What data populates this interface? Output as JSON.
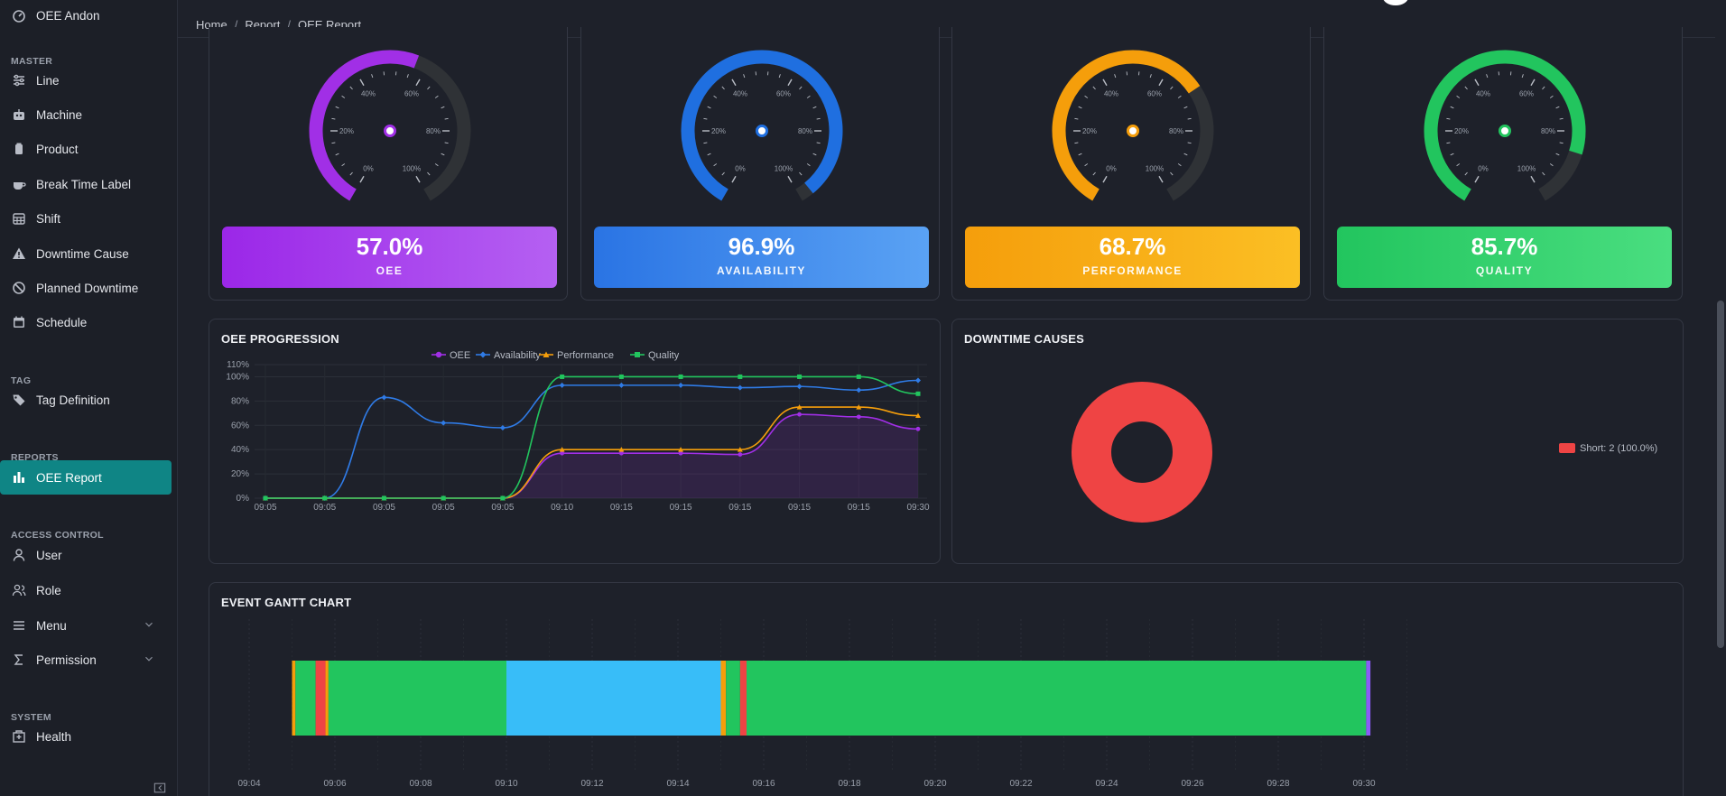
{
  "sidebar": {
    "top_item": {
      "label": "OEE Andon",
      "icon": "gauge-icon"
    },
    "sections": [
      {
        "label": "MASTER"
      },
      {
        "label": "TAG"
      },
      {
        "label": "REPORTS"
      },
      {
        "label": "ACCESS CONTROL"
      },
      {
        "label": "SYSTEM"
      }
    ],
    "items": [
      {
        "label": "Line",
        "icon": "sliders-icon"
      },
      {
        "label": "Machine",
        "icon": "robot-icon"
      },
      {
        "label": "Product",
        "icon": "box-icon"
      },
      {
        "label": "Break Time Label",
        "icon": "coffee-icon"
      },
      {
        "label": "Shift",
        "icon": "calendar-grid-icon"
      },
      {
        "label": "Downtime Cause",
        "icon": "warning-icon"
      },
      {
        "label": "Planned Downtime",
        "icon": "ban-icon"
      },
      {
        "label": "Schedule",
        "icon": "calendar-icon"
      },
      {
        "label": "Tag Definition",
        "icon": "tags-icon"
      },
      {
        "label": "OEE Report",
        "icon": "bar-chart-icon",
        "active": true
      },
      {
        "label": "User",
        "icon": "user-icon"
      },
      {
        "label": "Role",
        "icon": "users-icon"
      },
      {
        "label": "Menu",
        "icon": "menu-icon"
      },
      {
        "label": "Permission",
        "icon": "sigma-icon"
      },
      {
        "label": "Health",
        "icon": "hospital-icon"
      }
    ]
  },
  "breadcrumb": [
    "Home",
    "Report",
    "OEE Report"
  ],
  "gauges": [
    {
      "label": "OEE",
      "value_text": "57.0%",
      "value": 57.0,
      "color": "#a12fe6",
      "box_from": "#9b27e8",
      "box_to": "#b560f2"
    },
    {
      "label": "AVAILABILITY",
      "value_text": "96.9%",
      "value": 96.9,
      "color": "#1f6fe0",
      "box_from": "#2a74e4",
      "box_to": "#5aa2f4"
    },
    {
      "label": "PERFORMANCE",
      "value_text": "68.7%",
      "value": 68.7,
      "color": "#f59e0b",
      "box_from": "#f59e0b",
      "box_to": "#fbbf24"
    },
    {
      "label": "QUALITY",
      "value_text": "85.7%",
      "value": 85.7,
      "color": "#22c55e",
      "box_from": "#22c55e",
      "box_to": "#4ade80"
    }
  ],
  "gauge_ticks": [
    "0%",
    "20%",
    "40%",
    "60%",
    "80%",
    "100%"
  ],
  "oee_progression": {
    "title": "OEE PROGRESSION",
    "chart_data": {
      "type": "line",
      "categories": [
        "09:05",
        "09:05",
        "09:05",
        "09:05",
        "09:05",
        "09:10",
        "09:15",
        "09:15",
        "09:15",
        "09:15",
        "09:15",
        "09:30"
      ],
      "yticks": [
        "0%",
        "20%",
        "40%",
        "60%",
        "80%",
        "100%",
        "110%"
      ],
      "ylim": [
        0,
        110
      ],
      "series": [
        {
          "name": "OEE",
          "color": "#a12fe6",
          "marker": "circle",
          "values": [
            0,
            0,
            0,
            0,
            0,
            37,
            37,
            37,
            36,
            69,
            67,
            57
          ],
          "fill": true
        },
        {
          "name": "Availability",
          "color": "#2f7be6",
          "marker": "diamond",
          "values": [
            0,
            0,
            83,
            62,
            58,
            93,
            93,
            93,
            91,
            92,
            89,
            97
          ]
        },
        {
          "name": "Performance",
          "color": "#f59e0b",
          "marker": "triangle",
          "values": [
            0,
            0,
            0,
            0,
            0,
            40,
            40,
            40,
            40,
            75,
            75,
            68
          ]
        },
        {
          "name": "Quality",
          "color": "#22c55e",
          "marker": "square",
          "values": [
            0,
            0,
            0,
            0,
            0,
            100,
            100,
            100,
            100,
            100,
            100,
            86
          ]
        }
      ]
    }
  },
  "downtime": {
    "title": "DOWNTIME CAUSES",
    "chart_data": {
      "type": "pie",
      "slices": [
        {
          "label": "Short: 2 (100.0%)",
          "value": 2,
          "color": "#ef4444"
        }
      ]
    }
  },
  "gantt": {
    "title": "EVENT GANTT CHART",
    "chart_data": {
      "type": "bar",
      "x_range": [
        "09:03:30",
        "09:31:30"
      ],
      "xticks": [
        "09:04",
        "09:06",
        "09:08",
        "09:10",
        "09:12",
        "09:14",
        "09:16",
        "09:18",
        "09:20",
        "09:22",
        "09:24",
        "09:26",
        "09:28",
        "09:30"
      ],
      "segments": [
        {
          "start": 5.0,
          "end": 5.08,
          "color": "#f59e0b"
        },
        {
          "start": 5.08,
          "end": 5.55,
          "color": "#22c55e"
        },
        {
          "start": 5.55,
          "end": 5.78,
          "color": "#ef4444"
        },
        {
          "start": 5.78,
          "end": 5.85,
          "color": "#f59e0b"
        },
        {
          "start": 5.85,
          "end": 10.0,
          "color": "#22c55e"
        },
        {
          "start": 10.0,
          "end": 15.0,
          "color": "#38bdf8"
        },
        {
          "start": 15.0,
          "end": 15.12,
          "color": "#f59e0b"
        },
        {
          "start": 15.12,
          "end": 15.45,
          "color": "#22c55e"
        },
        {
          "start": 15.45,
          "end": 15.6,
          "color": "#ef4444"
        },
        {
          "start": 15.6,
          "end": 30.05,
          "color": "#22c55e"
        },
        {
          "start": 30.05,
          "end": 30.15,
          "color": "#8b5cf6"
        }
      ]
    }
  }
}
